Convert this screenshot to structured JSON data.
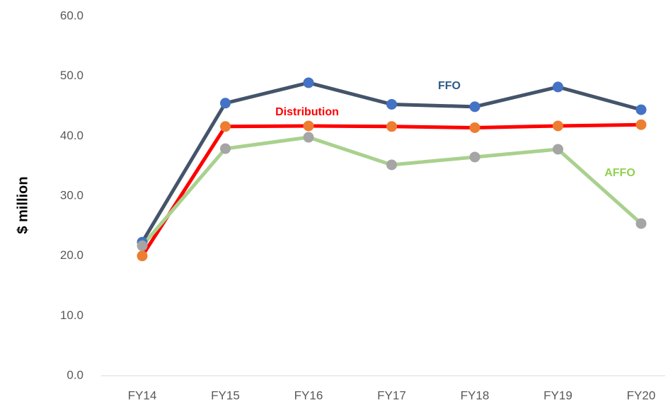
{
  "chart_data": {
    "type": "line",
    "y_label": "$ million",
    "categories": [
      "FY14",
      "FY15",
      "FY16",
      "FY17",
      "FY18",
      "FY19",
      "FY20"
    ],
    "series": [
      {
        "name": "FFO",
        "color": "#44546a",
        "marker_color": "#4472c4",
        "label_color": "#2f5b87",
        "values": [
          22.3,
          45.5,
          48.9,
          45.3,
          44.9,
          48.2,
          44.4
        ]
      },
      {
        "name": "Distribution",
        "color": "#ff0000",
        "marker_color": "#ed7d31",
        "label_color": "#ff0000",
        "values": [
          20.0,
          41.6,
          41.7,
          41.6,
          41.4,
          41.7,
          41.9
        ]
      },
      {
        "name": "AFFO",
        "color": "#a9d18e",
        "marker_color": "#a5a5a5",
        "label_color": "#92d050",
        "values": [
          21.7,
          37.9,
          39.8,
          35.2,
          36.5,
          37.8,
          25.4
        ]
      }
    ],
    "ylim": [
      0,
      60
    ],
    "yticks": [
      {
        "value": 0,
        "label": "0.0"
      },
      {
        "value": 10,
        "label": "10.0"
      },
      {
        "value": 20,
        "label": "20.0"
      },
      {
        "value": 30,
        "label": "30.0"
      },
      {
        "value": 40,
        "label": "40.0"
      },
      {
        "value": 50,
        "label": "50.0"
      },
      {
        "value": 60,
        "label": "60.0"
      }
    ],
    "grid": false
  }
}
